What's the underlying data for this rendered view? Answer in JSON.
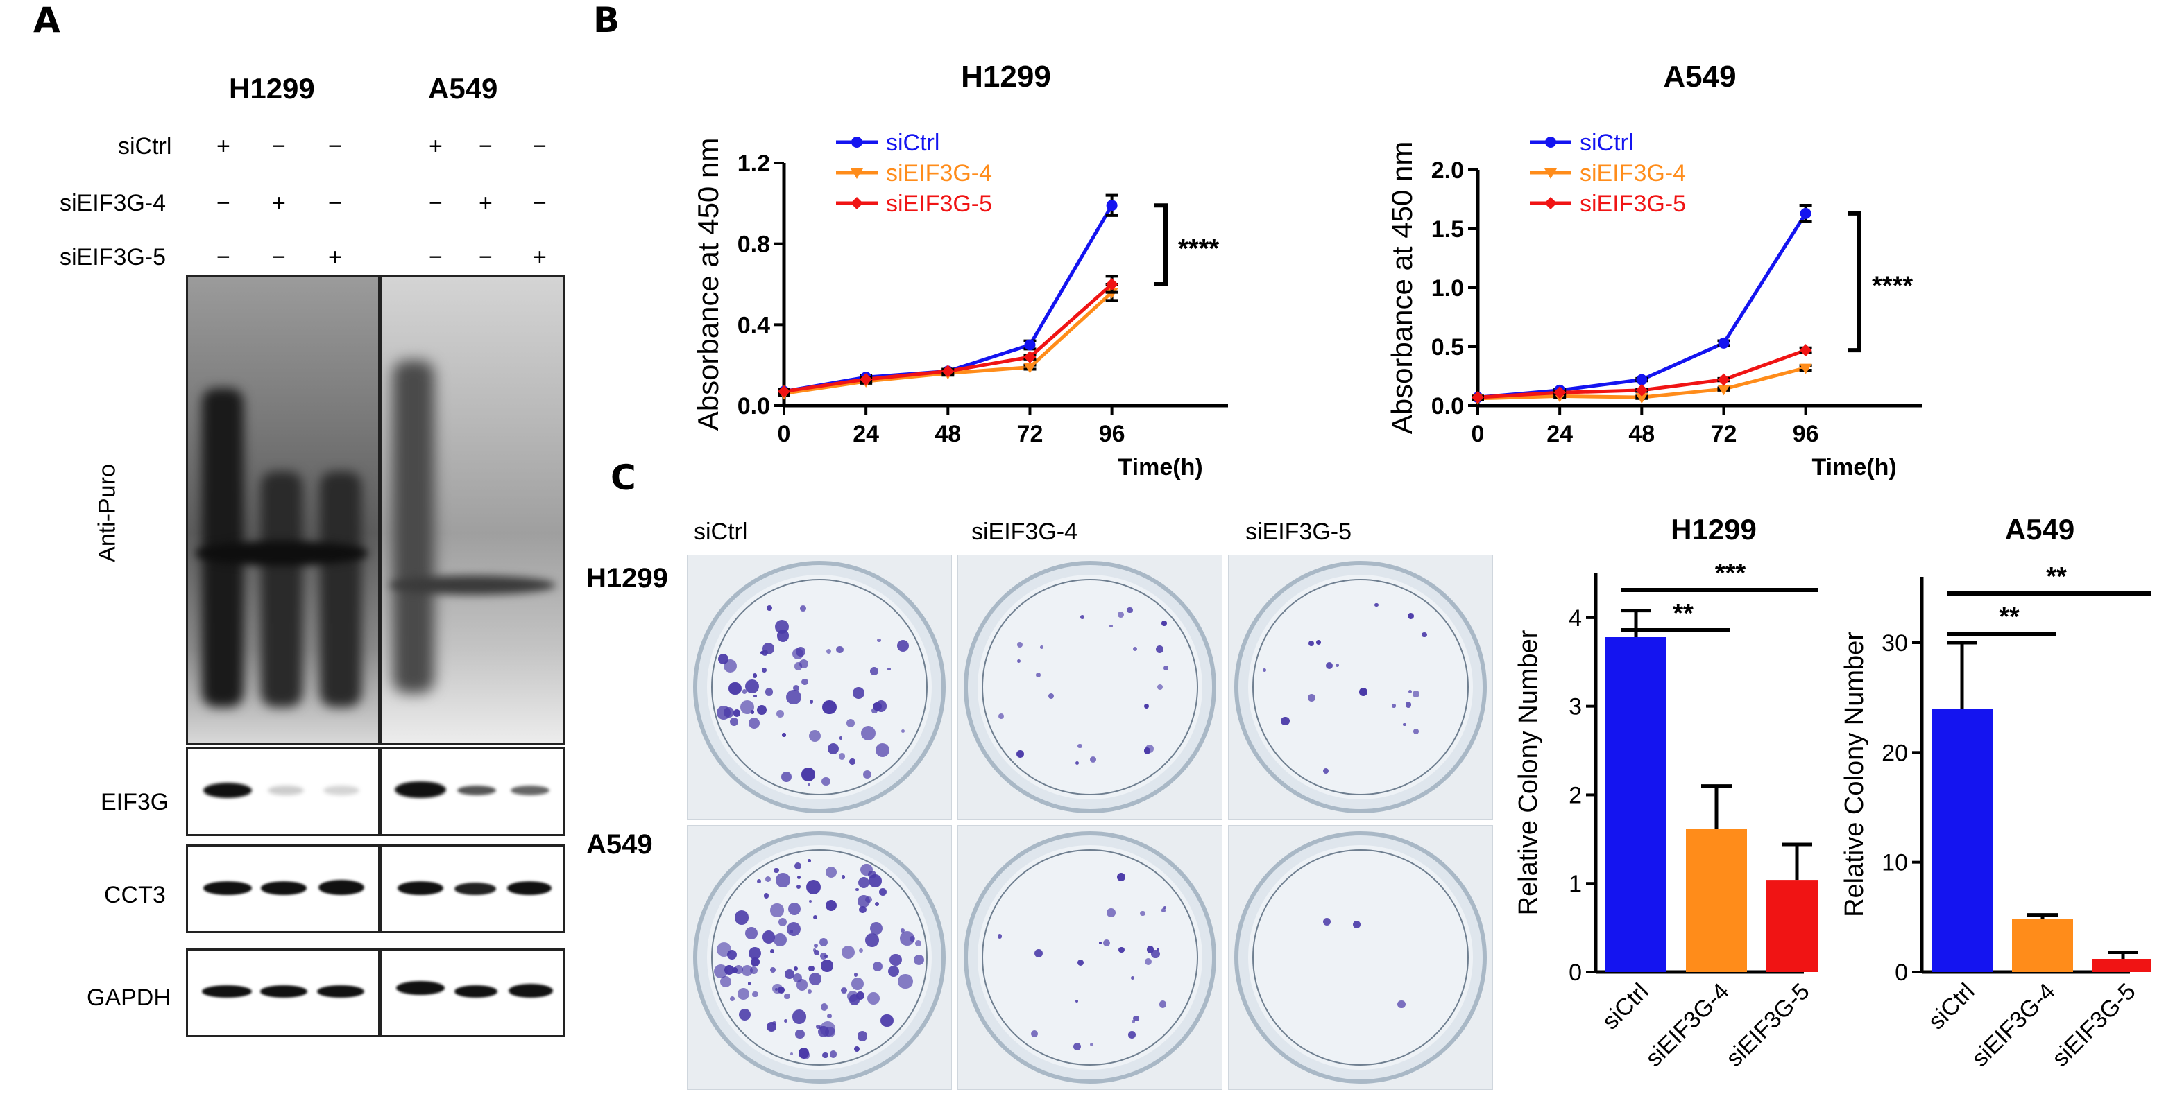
{
  "panels": {
    "A": "A",
    "B": "B",
    "C": "C"
  },
  "blot": {
    "cell_lines": [
      "H1299",
      "A549"
    ],
    "row_labels": [
      "siCtrl",
      "siEIF3G-4",
      "siEIF3G-5"
    ],
    "signs": [
      [
        "+",
        "−",
        "−",
        "+",
        "−",
        "−"
      ],
      [
        "−",
        "+",
        "−",
        "−",
        "+",
        "−"
      ],
      [
        "−",
        "−",
        "+",
        "−",
        "−",
        "+"
      ]
    ],
    "blot_labels": [
      "Anti-Puro",
      "EIF3G",
      "CCT3",
      "GAPDH"
    ]
  },
  "colors": {
    "siCtrl": "#1414f0",
    "siEIF3G-4": "#ff8c1a",
    "siEIF3G-5": "#f01414"
  },
  "chart_data": [
    {
      "type": "line",
      "title": "H1299",
      "xlabel": "Time(h)",
      "ylabel": "Absorbance at 450 nm",
      "x": [
        0,
        24,
        48,
        72,
        96
      ],
      "xticks": [
        "0",
        "24",
        "48",
        "72",
        "96"
      ],
      "ylim": [
        0,
        1.2
      ],
      "yticks": [
        "0.0",
        "0.4",
        "0.8",
        "1.2"
      ],
      "ytick_values": [
        0,
        0.4,
        0.8,
        1.2
      ],
      "series": [
        {
          "name": "siCtrl",
          "values": [
            0.07,
            0.14,
            0.17,
            0.3,
            0.99
          ],
          "err": [
            0.01,
            0.01,
            0.01,
            0.02,
            0.05
          ]
        },
        {
          "name": "siEIF3G-4",
          "values": [
            0.06,
            0.12,
            0.16,
            0.19,
            0.56
          ],
          "err": [
            0.01,
            0.01,
            0.01,
            0.01,
            0.04
          ]
        },
        {
          "name": "siEIF3G-5",
          "values": [
            0.07,
            0.13,
            0.17,
            0.24,
            0.6
          ],
          "err": [
            0.01,
            0.01,
            0.01,
            0.01,
            0.04
          ]
        }
      ],
      "significance": "****"
    },
    {
      "type": "line",
      "title": "A549",
      "xlabel": "Time(h)",
      "ylabel": "Absorbance at 450 nm",
      "x": [
        0,
        24,
        48,
        72,
        96
      ],
      "xticks": [
        "0",
        "24",
        "48",
        "72",
        "96"
      ],
      "ylim": [
        0,
        2.0
      ],
      "yticks": [
        "0.0",
        "0.5",
        "1.0",
        "1.5",
        "2.0"
      ],
      "ytick_values": [
        0,
        0.5,
        1.0,
        1.5,
        2.0
      ],
      "series": [
        {
          "name": "siCtrl",
          "values": [
            0.07,
            0.13,
            0.22,
            0.53,
            1.63
          ],
          "err": [
            0.01,
            0.01,
            0.01,
            0.02,
            0.07
          ]
        },
        {
          "name": "siEIF3G-4",
          "values": [
            0.06,
            0.08,
            0.07,
            0.14,
            0.32
          ],
          "err": [
            0.01,
            0.01,
            0.01,
            0.01,
            0.02
          ]
        },
        {
          "name": "siEIF3G-5",
          "values": [
            0.07,
            0.11,
            0.13,
            0.22,
            0.47
          ],
          "err": [
            0.01,
            0.01,
            0.01,
            0.01,
            0.02
          ]
        }
      ],
      "significance": "****"
    },
    {
      "type": "bar",
      "title": "H1299",
      "ylabel": "Relative Colony Number",
      "categories": [
        "siCtrl",
        "siEIF3G-4",
        "siEIF3G-5"
      ],
      "values": [
        3.78,
        1.62,
        1.04
      ],
      "err": [
        0.3,
        0.48,
        0.4
      ],
      "ylim": [
        0,
        4.5
      ],
      "yticks": [
        "0",
        "1",
        "2",
        "3",
        "4"
      ],
      "ytick_values": [
        0,
        1,
        2,
        3,
        4
      ],
      "significance": [
        "**",
        "***"
      ]
    },
    {
      "type": "bar",
      "title": "A549",
      "ylabel": "Relative Colony Number",
      "categories": [
        "siCtrl",
        "siEIF3G-4",
        "siEIF3G-5"
      ],
      "values": [
        24,
        4.8,
        1.2
      ],
      "err": [
        6,
        0.4,
        0.6
      ],
      "ylim": [
        0,
        36
      ],
      "yticks": [
        "0",
        "10",
        "20",
        "30"
      ],
      "ytick_values": [
        0,
        10,
        20,
        30
      ],
      "significance": [
        "**",
        "**"
      ]
    }
  ],
  "colony": {
    "column_labels": [
      "siCtrl",
      "siEIF3G-4",
      "siEIF3G-5"
    ],
    "row_labels": [
      "H1299",
      "A549"
    ]
  }
}
